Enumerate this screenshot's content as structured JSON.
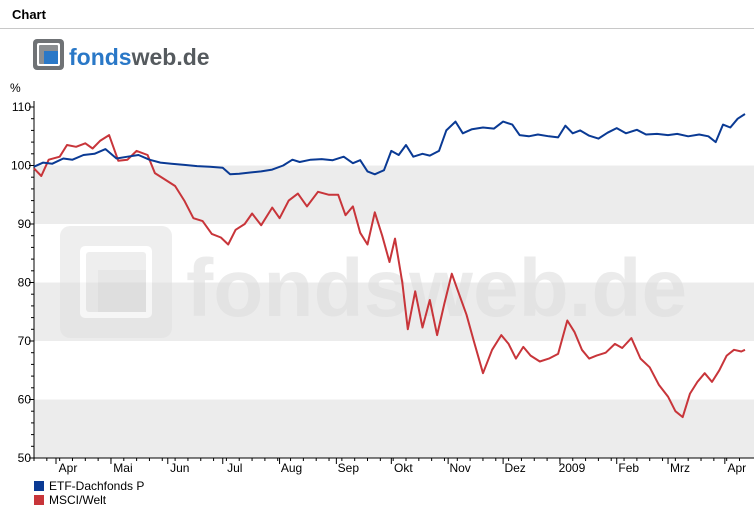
{
  "header": {
    "title": "Chart"
  },
  "brand": {
    "logo_text_1": "fonds",
    "logo_text_2": "web.de"
  },
  "chart_data": {
    "type": "line",
    "ylabel": "%",
    "ylim": [
      50,
      110
    ],
    "yticks": [
      50,
      60,
      70,
      80,
      90,
      100,
      110
    ],
    "x_ticklabels": [
      "Apr",
      "Mai",
      "Jun",
      "Jul",
      "Aug",
      "Sep",
      "Okt",
      "Nov",
      "Dez",
      "2009",
      "Feb",
      "Mrz",
      "Apr"
    ],
    "x_tick_dates": [
      "2008-04-01",
      "2008-05-01",
      "2008-06-01",
      "2008-07-01",
      "2008-08-01",
      "2008-09-01",
      "2008-10-01",
      "2008-11-01",
      "2008-12-01",
      "2009-01-01",
      "2009-02-01",
      "2009-03-01",
      "2009-04-01"
    ],
    "xlim": [
      "2008-03-20",
      "2009-04-12"
    ],
    "grid": "alternating horizontal bands",
    "legend_position": "bottom-left",
    "series": [
      {
        "name": "ETF-Dachfonds P",
        "color": "#0a3a94",
        "points": [
          [
            "2008-03-20",
            99.8
          ],
          [
            "2008-03-25",
            100.5
          ],
          [
            "2008-03-30",
            100.3
          ],
          [
            "2008-04-05",
            101.2
          ],
          [
            "2008-04-10",
            101.0
          ],
          [
            "2008-04-16",
            101.8
          ],
          [
            "2008-04-22",
            102.0
          ],
          [
            "2008-04-28",
            102.8
          ],
          [
            "2008-05-04",
            101.2
          ],
          [
            "2008-05-10",
            101.5
          ],
          [
            "2008-05-16",
            101.8
          ],
          [
            "2008-05-22",
            101.0
          ],
          [
            "2008-05-28",
            100.5
          ],
          [
            "2008-06-03",
            100.3
          ],
          [
            "2008-06-10",
            100.1
          ],
          [
            "2008-06-17",
            99.9
          ],
          [
            "2008-06-24",
            99.8
          ],
          [
            "2008-07-01",
            99.6
          ],
          [
            "2008-07-05",
            98.5
          ],
          [
            "2008-07-10",
            98.6
          ],
          [
            "2008-07-16",
            98.8
          ],
          [
            "2008-07-22",
            99.0
          ],
          [
            "2008-07-28",
            99.3
          ],
          [
            "2008-08-03",
            100.0
          ],
          [
            "2008-08-08",
            101.0
          ],
          [
            "2008-08-12",
            100.6
          ],
          [
            "2008-08-18",
            101.0
          ],
          [
            "2008-08-24",
            101.1
          ],
          [
            "2008-08-30",
            100.9
          ],
          [
            "2008-09-05",
            101.5
          ],
          [
            "2008-09-10",
            100.4
          ],
          [
            "2008-09-14",
            100.9
          ],
          [
            "2008-09-18",
            99.0
          ],
          [
            "2008-09-22",
            98.5
          ],
          [
            "2008-09-27",
            99.2
          ],
          [
            "2008-10-01",
            102.5
          ],
          [
            "2008-10-05",
            101.8
          ],
          [
            "2008-10-09",
            103.5
          ],
          [
            "2008-10-13",
            101.5
          ],
          [
            "2008-10-18",
            102.0
          ],
          [
            "2008-10-22",
            101.7
          ],
          [
            "2008-10-27",
            102.5
          ],
          [
            "2008-10-31",
            106.0
          ],
          [
            "2008-11-05",
            107.5
          ],
          [
            "2008-11-09",
            105.5
          ],
          [
            "2008-11-14",
            106.2
          ],
          [
            "2008-11-20",
            106.5
          ],
          [
            "2008-11-26",
            106.3
          ],
          [
            "2008-12-01",
            107.5
          ],
          [
            "2008-12-06",
            107.0
          ],
          [
            "2008-12-10",
            105.2
          ],
          [
            "2008-12-15",
            105.0
          ],
          [
            "2008-12-20",
            105.3
          ],
          [
            "2008-12-26",
            105.0
          ],
          [
            "2008-12-31",
            104.8
          ],
          [
            "2009-01-04",
            106.8
          ],
          [
            "2009-01-08",
            105.5
          ],
          [
            "2009-01-12",
            106.0
          ],
          [
            "2009-01-17",
            105.1
          ],
          [
            "2009-01-22",
            104.6
          ],
          [
            "2009-01-27",
            105.6
          ],
          [
            "2009-02-01",
            106.4
          ],
          [
            "2009-02-06",
            105.5
          ],
          [
            "2009-02-12",
            106.1
          ],
          [
            "2009-02-17",
            105.3
          ],
          [
            "2009-02-23",
            105.4
          ],
          [
            "2009-03-01",
            105.2
          ],
          [
            "2009-03-06",
            105.4
          ],
          [
            "2009-03-12",
            105.0
          ],
          [
            "2009-03-18",
            105.3
          ],
          [
            "2009-03-23",
            105.0
          ],
          [
            "2009-03-27",
            104.0
          ],
          [
            "2009-03-31",
            107.0
          ],
          [
            "2009-04-04",
            106.5
          ],
          [
            "2009-04-08",
            108.0
          ],
          [
            "2009-04-12",
            108.8
          ]
        ]
      },
      {
        "name": "MSCI/Welt",
        "color": "#c8353a",
        "points": [
          [
            "2008-03-20",
            99.5
          ],
          [
            "2008-03-24",
            98.2
          ],
          [
            "2008-03-28",
            101.0
          ],
          [
            "2008-04-03",
            101.5
          ],
          [
            "2008-04-07",
            103.5
          ],
          [
            "2008-04-12",
            103.2
          ],
          [
            "2008-04-17",
            103.8
          ],
          [
            "2008-04-21",
            102.9
          ],
          [
            "2008-04-25",
            104.2
          ],
          [
            "2008-04-30",
            105.2
          ],
          [
            "2008-05-05",
            100.8
          ],
          [
            "2008-05-10",
            101.0
          ],
          [
            "2008-05-15",
            102.5
          ],
          [
            "2008-05-21",
            101.8
          ],
          [
            "2008-05-25",
            98.7
          ],
          [
            "2008-05-31",
            97.5
          ],
          [
            "2008-06-05",
            96.5
          ],
          [
            "2008-06-10",
            94.0
          ],
          [
            "2008-06-15",
            91.0
          ],
          [
            "2008-06-20",
            90.5
          ],
          [
            "2008-06-25",
            88.3
          ],
          [
            "2008-06-30",
            87.7
          ],
          [
            "2008-07-04",
            86.5
          ],
          [
            "2008-07-08",
            89.0
          ],
          [
            "2008-07-13",
            90.0
          ],
          [
            "2008-07-17",
            91.8
          ],
          [
            "2008-07-22",
            89.8
          ],
          [
            "2008-07-28",
            92.8
          ],
          [
            "2008-08-01",
            91.0
          ],
          [
            "2008-08-06",
            94.0
          ],
          [
            "2008-08-11",
            95.2
          ],
          [
            "2008-08-16",
            93.0
          ],
          [
            "2008-08-22",
            95.5
          ],
          [
            "2008-08-28",
            95.0
          ],
          [
            "2008-09-02",
            95.0
          ],
          [
            "2008-09-06",
            91.5
          ],
          [
            "2008-09-10",
            93.0
          ],
          [
            "2008-09-14",
            88.5
          ],
          [
            "2008-09-18",
            86.5
          ],
          [
            "2008-09-22",
            92.0
          ],
          [
            "2008-09-26",
            88.0
          ],
          [
            "2008-09-30",
            83.5
          ],
          [
            "2008-10-03",
            87.5
          ],
          [
            "2008-10-07",
            80.0
          ],
          [
            "2008-10-10",
            72.0
          ],
          [
            "2008-10-14",
            78.5
          ],
          [
            "2008-10-18",
            72.3
          ],
          [
            "2008-10-22",
            77.0
          ],
          [
            "2008-10-26",
            71.0
          ],
          [
            "2008-10-30",
            76.5
          ],
          [
            "2008-11-03",
            81.5
          ],
          [
            "2008-11-07",
            78.0
          ],
          [
            "2008-11-11",
            74.5
          ],
          [
            "2008-11-15",
            70.0
          ],
          [
            "2008-11-20",
            64.5
          ],
          [
            "2008-11-25",
            68.5
          ],
          [
            "2008-11-30",
            71.0
          ],
          [
            "2008-12-04",
            69.5
          ],
          [
            "2008-12-08",
            67.0
          ],
          [
            "2008-12-12",
            69.0
          ],
          [
            "2008-12-16",
            67.5
          ],
          [
            "2008-12-21",
            66.5
          ],
          [
            "2008-12-26",
            67.0
          ],
          [
            "2008-12-31",
            67.8
          ],
          [
            "2009-01-05",
            73.5
          ],
          [
            "2009-01-09",
            71.5
          ],
          [
            "2009-01-13",
            68.5
          ],
          [
            "2009-01-17",
            67.0
          ],
          [
            "2009-01-21",
            67.5
          ],
          [
            "2009-01-26",
            68.0
          ],
          [
            "2009-01-31",
            69.5
          ],
          [
            "2009-02-04",
            68.8
          ],
          [
            "2009-02-09",
            70.5
          ],
          [
            "2009-02-14",
            67.0
          ],
          [
            "2009-02-19",
            65.5
          ],
          [
            "2009-02-24",
            62.5
          ],
          [
            "2009-03-01",
            60.5
          ],
          [
            "2009-03-05",
            58.0
          ],
          [
            "2009-03-09",
            57.0
          ],
          [
            "2009-03-13",
            61.0
          ],
          [
            "2009-03-17",
            63.0
          ],
          [
            "2009-03-21",
            64.5
          ],
          [
            "2009-03-25",
            63.0
          ],
          [
            "2009-03-29",
            65.0
          ],
          [
            "2009-04-02",
            67.5
          ],
          [
            "2009-04-06",
            68.5
          ],
          [
            "2009-04-10",
            68.2
          ],
          [
            "2009-04-12",
            68.5
          ]
        ]
      }
    ]
  }
}
